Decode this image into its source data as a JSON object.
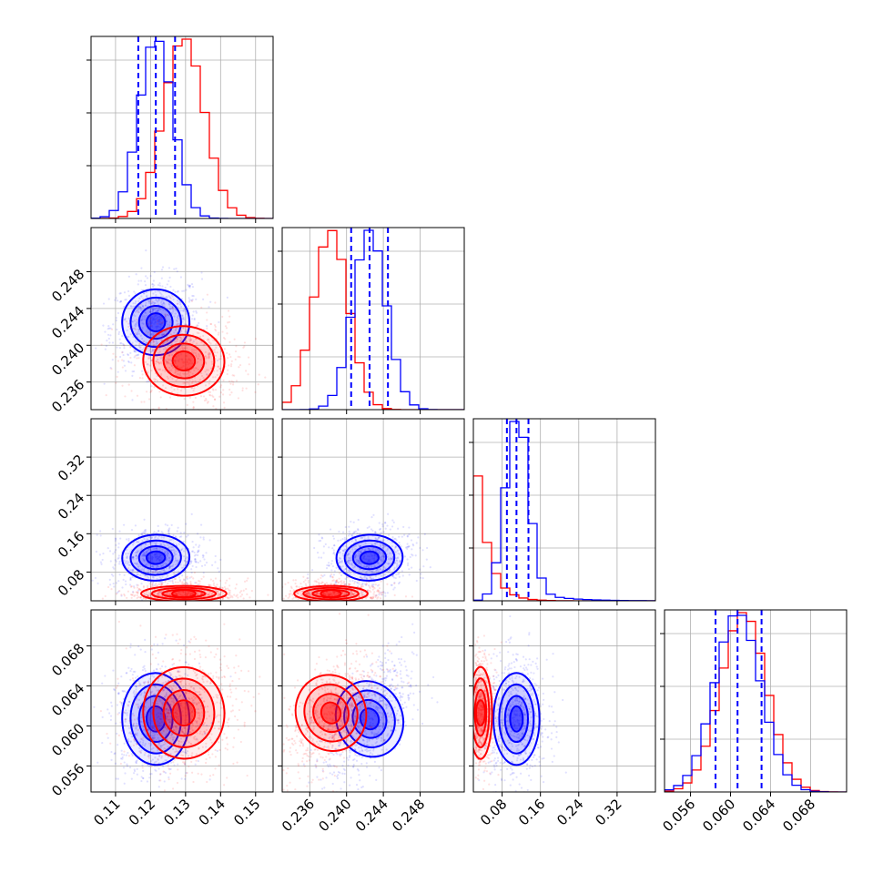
{
  "colors": {
    "series_a": "#0000ff",
    "series_b": "#ff0000",
    "grid": "#b0b0b0",
    "frame": "#000000"
  },
  "chart_data": {
    "type": "corner",
    "parameters": [
      {
        "range": [
          0.103,
          0.155
        ],
        "ticks": [
          0.11,
          0.12,
          0.13,
          0.14,
          0.15
        ],
        "tick_labels": [
          "0.11",
          "0.12",
          "0.13",
          "0.14",
          "0.15"
        ]
      },
      {
        "range": [
          0.233,
          0.2528
        ],
        "ticks": [
          0.236,
          0.24,
          0.244,
          0.248
        ],
        "tick_labels": [
          "0.236",
          "0.240",
          "0.244",
          "0.248"
        ]
      },
      {
        "range": [
          0.02,
          0.4
        ],
        "ticks": [
          0.08,
          0.16,
          0.24,
          0.32
        ],
        "tick_labels": [
          "0.08",
          "0.16",
          "0.24",
          "0.32"
        ]
      },
      {
        "range": [
          0.0534,
          0.0716
        ],
        "ticks": [
          0.056,
          0.06,
          0.064,
          0.068
        ],
        "tick_labels": [
          "0.056",
          "0.060",
          "0.064",
          "0.068"
        ]
      }
    ],
    "series": [
      {
        "color": "#0000ff",
        "means": [
          0.1215,
          0.2425,
          0.11,
          0.0607
        ],
        "sigmas": [
          0.0048,
          0.0018,
          0.024,
          0.0023
        ],
        "correlations": {
          "0-1": 0.1,
          "0-2": 0.05,
          "0-3": 0.05,
          "1-2": 0.05,
          "1-3": 0.55,
          "2-3": 0.0
        },
        "quantiles": [
          [
            0.1165,
            0.1215,
            0.127
          ],
          [
            0.2405,
            0.2425,
            0.2445
          ],
          [
            0.09,
            0.11,
            0.135
          ],
          [
            0.0585,
            0.0607,
            0.0631
          ]
        ]
      },
      {
        "color": "#ff0000",
        "means": [
          0.1295,
          0.2383,
          0.045,
          0.0613
        ],
        "sigmas": [
          0.0058,
          0.0019,
          0.012,
          0.0023
        ],
        "correlations": {
          "0-1": -0.1,
          "0-2": 0.1,
          "0-3": 0.1,
          "1-2": 0.05,
          "1-3": 0.55,
          "2-3": 0.0
        }
      }
    ]
  }
}
